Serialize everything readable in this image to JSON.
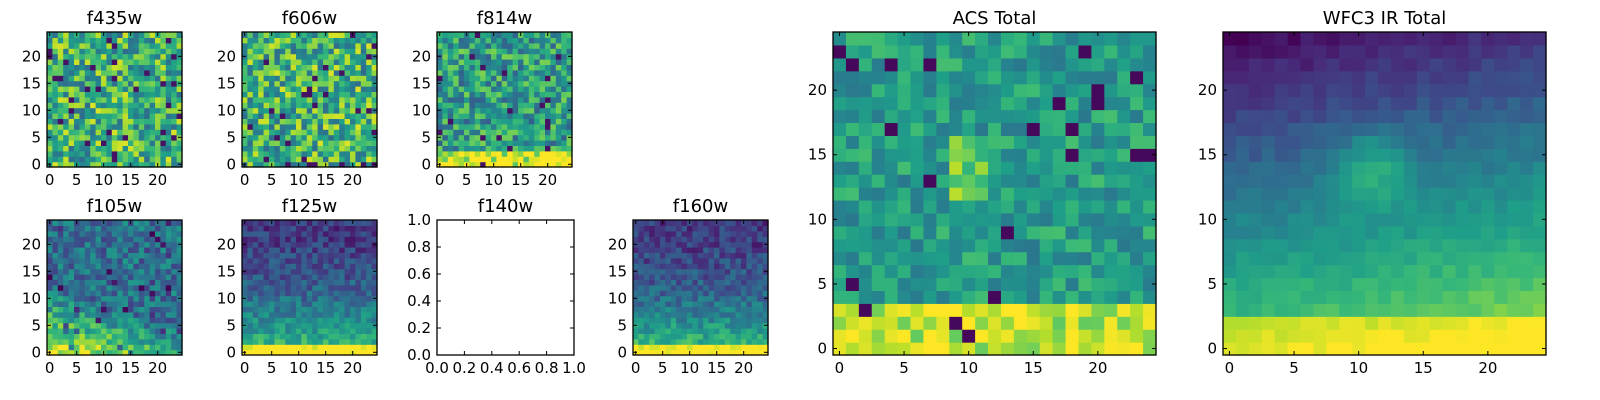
{
  "chart_data": [
    {
      "type": "heatmap",
      "title": "f435w",
      "xticks": [
        "0",
        "5",
        "10",
        "15",
        "20"
      ],
      "yticks": [
        "0",
        "5",
        "10",
        "15",
        "20"
      ],
      "grid_size": 25,
      "xlim": [
        -0.5,
        24.5
      ],
      "ylim": [
        -0.5,
        24.5
      ],
      "colormap": "viridis",
      "pattern": "uniform-noise"
    },
    {
      "type": "heatmap",
      "title": "f606w",
      "xticks": [
        "0",
        "5",
        "10",
        "15",
        "20"
      ],
      "yticks": [
        "0",
        "5",
        "10",
        "15",
        "20"
      ],
      "grid_size": 25,
      "xlim": [
        -0.5,
        24.5
      ],
      "ylim": [
        -0.5,
        24.5
      ],
      "colormap": "viridis",
      "pattern": "uniform-noise"
    },
    {
      "type": "heatmap",
      "title": "f814w",
      "xticks": [
        "0",
        "5",
        "10",
        "15",
        "20"
      ],
      "yticks": [
        "0",
        "5",
        "10",
        "15",
        "20"
      ],
      "grid_size": 25,
      "xlim": [
        -0.5,
        24.5
      ],
      "ylim": [
        -0.5,
        24.5
      ],
      "colormap": "viridis",
      "pattern": "bright-bottom"
    },
    {
      "type": "heatmap",
      "title": "f105w",
      "xticks": [
        "0",
        "5",
        "10",
        "15",
        "20"
      ],
      "yticks": [
        "0",
        "5",
        "10",
        "15",
        "20"
      ],
      "grid_size": 25,
      "xlim": [
        -0.5,
        24.5
      ],
      "ylim": [
        -0.5,
        24.5
      ],
      "colormap": "viridis",
      "pattern": "bright-bottom-left"
    },
    {
      "type": "heatmap",
      "title": "f125w",
      "xticks": [
        "0",
        "5",
        "10",
        "15",
        "20"
      ],
      "yticks": [
        "0",
        "5",
        "10",
        "15",
        "20"
      ],
      "grid_size": 25,
      "xlim": [
        -0.5,
        24.5
      ],
      "ylim": [
        -0.5,
        24.5
      ],
      "colormap": "viridis",
      "pattern": "dark-top-bright-bottom"
    },
    {
      "type": "empty",
      "title": "f140w",
      "xticks": [
        "0.0",
        "0.2",
        "0.4",
        "0.6",
        "0.8",
        "1.0"
      ],
      "yticks": [
        "0.0",
        "0.2",
        "0.4",
        "0.6",
        "0.8",
        "1.0"
      ],
      "xlim": [
        0,
        1
      ],
      "ylim": [
        0,
        1
      ]
    },
    {
      "type": "heatmap",
      "title": "f160w",
      "xticks": [
        "0",
        "5",
        "10",
        "15",
        "20"
      ],
      "yticks": [
        "0",
        "5",
        "10",
        "15",
        "20"
      ],
      "grid_size": 25,
      "xlim": [
        -0.5,
        24.5
      ],
      "ylim": [
        -0.5,
        24.5
      ],
      "colormap": "viridis",
      "pattern": "dark-top-bright-bottom"
    },
    {
      "type": "heatmap",
      "title": "ACS Total",
      "xticks": [
        "0",
        "5",
        "10",
        "15",
        "20"
      ],
      "yticks": [
        "0",
        "5",
        "10",
        "15",
        "20"
      ],
      "grid_size": 25,
      "xlim": [
        -0.5,
        24.5
      ],
      "ylim": [
        -0.5,
        24.5
      ],
      "colormap": "viridis",
      "pattern": "bright-bottom-noisy"
    },
    {
      "type": "heatmap",
      "title": "WFC3 IR Total",
      "xticks": [
        "0",
        "5",
        "10",
        "15",
        "20"
      ],
      "yticks": [
        "0",
        "5",
        "10",
        "15",
        "20"
      ],
      "grid_size": 25,
      "xlim": [
        -0.5,
        24.5
      ],
      "ylim": [
        -0.5,
        24.5
      ],
      "colormap": "viridis",
      "pattern": "smooth-gradient-dark-top-left"
    }
  ]
}
